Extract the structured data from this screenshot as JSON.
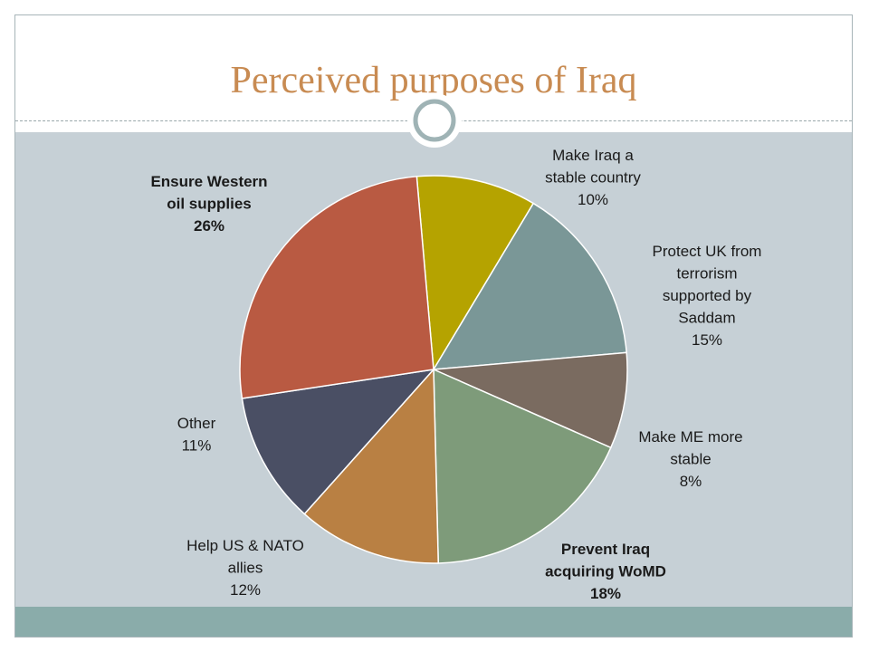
{
  "slide": {
    "title": "Perceived purposes of Iraq"
  },
  "colors": {
    "title": "#c88b52",
    "content_bg": "#c6d0d6",
    "footer_bg": "#8aacaa",
    "divider": "#9aa8ab"
  },
  "chart_data": {
    "type": "pie",
    "title": "",
    "slices": [
      {
        "label": "Make Iraq a stable country",
        "value": 10,
        "value_label": "10%",
        "color": "#b5a300",
        "bold": false
      },
      {
        "label": "Protect UK from terrorism supported by Saddam",
        "value": 15,
        "value_label": "15%",
        "color": "#7a9797",
        "bold": false
      },
      {
        "label": "Make ME more stable",
        "value": 8,
        "value_label": "8%",
        "color": "#7a6b60",
        "bold": false
      },
      {
        "label": "Prevent Iraq acquiring WoMD",
        "value": 18,
        "value_label": "18%",
        "color": "#7e9b7a",
        "bold": true
      },
      {
        "label": "Help US & NATO allies",
        "value": 12,
        "value_label": "12%",
        "color": "#b98043",
        "bold": false
      },
      {
        "label": "Other",
        "value": 11,
        "value_label": "11%",
        "color": "#4a4f64",
        "bold": false
      },
      {
        "label": "Ensure Western oil supplies",
        "value": 26,
        "value_label": "26%",
        "color": "#b95a42",
        "bold": true
      }
    ],
    "label_lines": [
      [
        "Make Iraq a",
        "stable country",
        "10%"
      ],
      [
        "Protect UK from",
        "terrorism",
        "supported by",
        "Saddam",
        "15%"
      ],
      [
        "Make ME more",
        "stable",
        "8%"
      ],
      [
        "Prevent Iraq",
        "acquiring WoMD",
        "18%"
      ],
      [
        "Help US & NATO",
        "allies",
        "12%"
      ],
      [
        "Other",
        "11%"
      ],
      [
        "Ensure Western",
        "oil supplies",
        "26%"
      ]
    ]
  }
}
